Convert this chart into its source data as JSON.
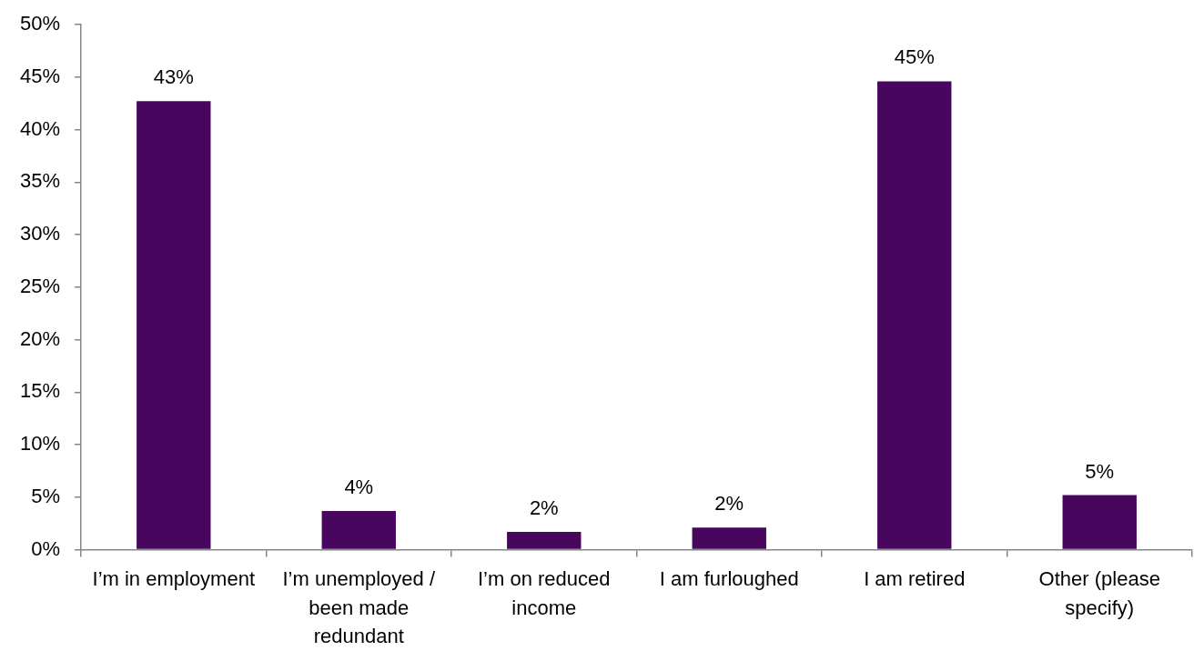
{
  "chart_data": {
    "type": "bar",
    "categories": [
      "I’m in employment",
      "I’m unemployed / been made redundant",
      "I’m on reduced income",
      "I am furloughed",
      "I am retired",
      "Other (please specify)"
    ],
    "values": [
      42.7,
      3.7,
      1.7,
      2.1,
      44.6,
      5.2
    ],
    "value_labels": [
      "43%",
      "4%",
      "2%",
      "2%",
      "45%",
      "5%"
    ],
    "color": "#48065f",
    "ylim": [
      0,
      50
    ],
    "yticks": [
      {
        "value": 0,
        "label": "0%"
      },
      {
        "value": 5,
        "label": "5%"
      },
      {
        "value": 10,
        "label": "10%"
      },
      {
        "value": 15,
        "label": "15%"
      },
      {
        "value": 20,
        "label": "20%"
      },
      {
        "value": 25,
        "label": "25%"
      },
      {
        "value": 30,
        "label": "30%"
      },
      {
        "value": 35,
        "label": "35%"
      },
      {
        "value": 40,
        "label": "40%"
      },
      {
        "value": 45,
        "label": "45%"
      },
      {
        "value": 50,
        "label": "50%"
      }
    ]
  }
}
